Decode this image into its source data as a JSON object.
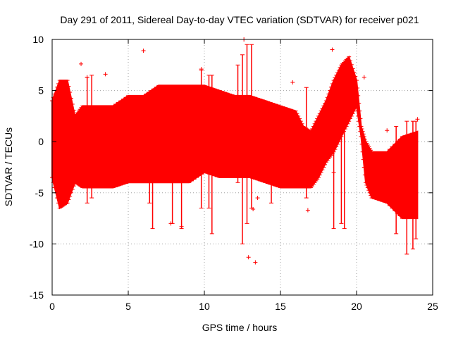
{
  "chart_data": {
    "type": "scatter",
    "title": "Day 291 of 2011, Sidereal Day-to-day VTEC variation (SDTVAR) for receiver p021",
    "xlabel": "GPS time / hours",
    "ylabel": "SDTVAR / TECUs",
    "xlim": [
      0,
      25
    ],
    "ylim": [
      -15,
      10
    ],
    "xticks": [
      "0",
      "5",
      "10",
      "15",
      "20",
      "25"
    ],
    "yticks": [
      "10",
      "5",
      "0",
      "-5",
      "-10",
      "-15"
    ],
    "grid": true,
    "marker": "+",
    "color": "#ff0000",
    "envelope": {
      "x": [
        0.0,
        0.5,
        1.0,
        1.5,
        2.0,
        3.0,
        4.0,
        5.0,
        6.0,
        7.0,
        8.0,
        9.0,
        10.0,
        11.0,
        12.0,
        13.0,
        14.0,
        15.0,
        16.0,
        16.5,
        17.0,
        17.5,
        18.0,
        18.5,
        19.0,
        19.5,
        20.0,
        20.3,
        20.6,
        21.0,
        22.0,
        23.0,
        24.0
      ],
      "upper": [
        4.0,
        6.0,
        6.0,
        2.5,
        3.5,
        3.5,
        3.5,
        4.5,
        4.5,
        5.5,
        5.5,
        5.5,
        5.5,
        5.0,
        4.5,
        4.5,
        4.0,
        3.5,
        3.0,
        1.5,
        1.0,
        2.5,
        4.0,
        6.0,
        7.5,
        8.3,
        6.0,
        1.5,
        0.0,
        -1.0,
        -1.0,
        0.5,
        1.0
      ],
      "lower": [
        -3.5,
        -6.5,
        -6.0,
        -4.0,
        -4.5,
        -4.5,
        -4.5,
        -4.0,
        -4.0,
        -4.0,
        -4.0,
        -4.0,
        -3.0,
        -3.5,
        -3.5,
        -3.5,
        -4.0,
        -4.5,
        -4.5,
        -4.5,
        -4.5,
        -3.5,
        -2.0,
        -1.0,
        0.5,
        2.0,
        3.5,
        0.5,
        -4.0,
        -5.5,
        -6.0,
        -7.5,
        -7.5
      ]
    },
    "outliers": [
      {
        "x": 6.0,
        "y": 8.9
      },
      {
        "x": 3.5,
        "y": 6.6
      },
      {
        "x": 12.6,
        "y": 10.0
      },
      {
        "x": 12.9,
        "y": -11.3
      },
      {
        "x": 13.2,
        "y": -6.6
      },
      {
        "x": 13.35,
        "y": -11.8
      },
      {
        "x": 13.5,
        "y": -5.5
      },
      {
        "x": 15.8,
        "y": 5.8
      },
      {
        "x": 16.8,
        "y": -6.7
      },
      {
        "x": 18.4,
        "y": 9.0
      },
      {
        "x": 18.5,
        "y": -3.0
      },
      {
        "x": 22.0,
        "y": 1.1
      },
      {
        "x": 22.3,
        "y": -3.5
      },
      {
        "x": 7.8,
        "y": -8.0
      },
      {
        "x": 8.5,
        "y": -8.3
      },
      {
        "x": 9.8,
        "y": 7.1
      },
      {
        "x": 2.3,
        "y": 6.3
      },
      {
        "x": 1.9,
        "y": 7.6
      },
      {
        "x": 20.5,
        "y": 6.3
      },
      {
        "x": 24.0,
        "y": 2.2
      }
    ],
    "spikes": [
      {
        "x": 2.3,
        "low": -6.0,
        "high": 6.3
      },
      {
        "x": 2.6,
        "low": -5.5,
        "high": 6.5
      },
      {
        "x": 6.4,
        "low": -6.0,
        "high": 4.5
      },
      {
        "x": 6.6,
        "low": -8.5,
        "high": 4.5
      },
      {
        "x": 7.9,
        "low": -8.0,
        "high": 5.0
      },
      {
        "x": 8.5,
        "low": -8.5,
        "high": 5.5
      },
      {
        "x": 9.8,
        "low": -6.5,
        "high": 7.0
      },
      {
        "x": 10.3,
        "low": -6.5,
        "high": 6.5
      },
      {
        "x": 10.5,
        "low": -9.0,
        "high": 6.5
      },
      {
        "x": 12.2,
        "low": -4.0,
        "high": 7.5
      },
      {
        "x": 12.5,
        "low": -10.0,
        "high": 8.5
      },
      {
        "x": 12.8,
        "low": -8.0,
        "high": 9.5
      },
      {
        "x": 13.1,
        "low": -6.5,
        "high": 9.5
      },
      {
        "x": 14.4,
        "low": -6.0,
        "high": 3.5
      },
      {
        "x": 16.7,
        "low": -5.5,
        "high": 5.3
      },
      {
        "x": 18.5,
        "low": -8.5,
        "high": 4.5
      },
      {
        "x": 19.0,
        "low": -8.0,
        "high": 4.5
      },
      {
        "x": 19.2,
        "low": -8.5,
        "high": 7.0
      },
      {
        "x": 22.6,
        "low": -9.0,
        "high": 1.5
      },
      {
        "x": 23.3,
        "low": -11.0,
        "high": 2.0
      },
      {
        "x": 23.7,
        "low": -10.5,
        "high": 2.0
      },
      {
        "x": 23.9,
        "low": -9.5,
        "high": 2.0
      }
    ]
  }
}
